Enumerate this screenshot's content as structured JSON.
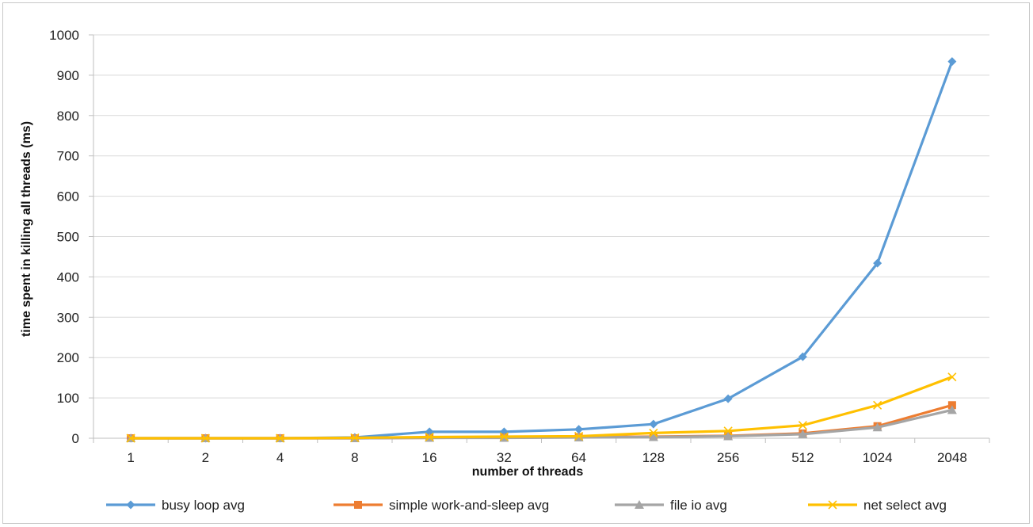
{
  "chart_data": {
    "type": "line",
    "title": "",
    "xlabel": "number of threads",
    "ylabel": "time spent in killing all threads (ms)",
    "categories": [
      "1",
      "2",
      "4",
      "8",
      "16",
      "32",
      "64",
      "128",
      "256",
      "512",
      "1024",
      "2048"
    ],
    "ylim": [
      0,
      1000
    ],
    "yticks": [
      0,
      100,
      200,
      300,
      400,
      500,
      600,
      700,
      800,
      900,
      1000
    ],
    "grid": true,
    "legend_position": "bottom",
    "series": [
      {
        "name": "busy loop avg",
        "color": "#5b9bd5",
        "marker": "diamond",
        "values": [
          0,
          0,
          0,
          2,
          16,
          16,
          22,
          35,
          98,
          202,
          434,
          934
        ]
      },
      {
        "name": "simple work-and-sleep avg",
        "color": "#ed7d31",
        "marker": "square",
        "values": [
          0,
          0,
          0,
          0,
          1,
          2,
          3,
          4,
          6,
          12,
          30,
          82
        ]
      },
      {
        "name": "file io avg",
        "color": "#a5a5a5",
        "marker": "triangle",
        "values": [
          0,
          0,
          0,
          0,
          1,
          1,
          2,
          3,
          5,
          10,
          27,
          70
        ]
      },
      {
        "name": "net select avg",
        "color": "#ffc000",
        "marker": "x",
        "values": [
          0,
          0,
          0,
          1,
          3,
          4,
          5,
          13,
          18,
          32,
          82,
          152
        ]
      }
    ]
  }
}
